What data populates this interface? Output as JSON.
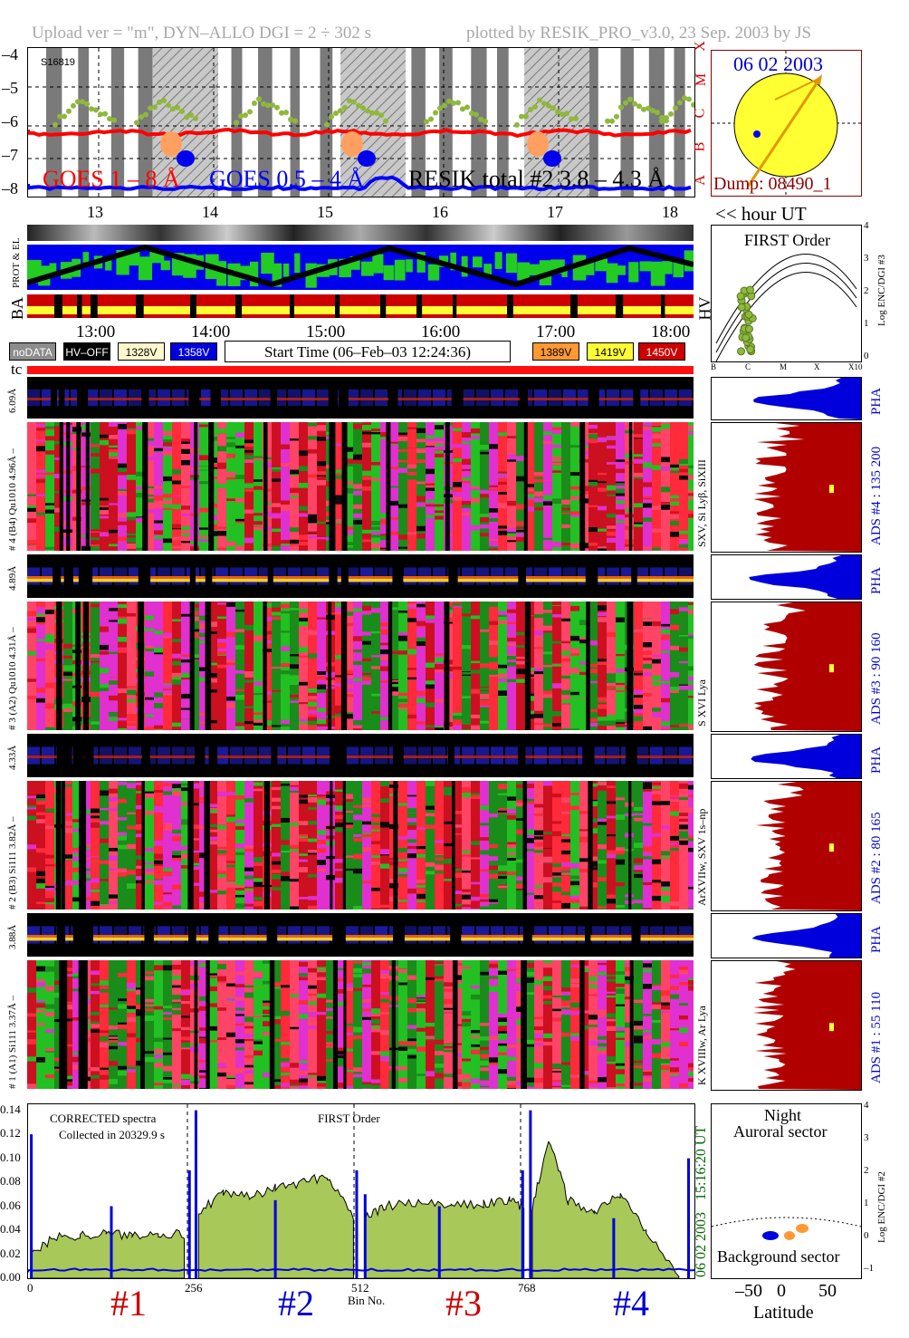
{
  "header": {
    "left_text": "Upload ver = \"m\", DYN–ALLO DGI = 2 ÷ 302 s",
    "right_text": "plotted by RESIK_PRO_v3.0, 23 Sep. 2003 by JS"
  },
  "goes_panel": {
    "y_ticks": [
      "–4",
      "–5",
      "–6",
      "–7",
      "–8"
    ],
    "class_letters": [
      "X",
      "M",
      "C",
      "B",
      "A"
    ],
    "badge": "S16819",
    "legend": {
      "goes1": "GOES 1 – 8 Å",
      "goes05": "GOES 0.5 – 4 Å",
      "resik": "RESIK total #2 3.8 – 4.3 Å"
    },
    "colors": {
      "goes1": "#ff0000",
      "goes05": "#0000ff",
      "resik": "#000000",
      "dots": "#8fb83c"
    }
  },
  "sun_panel": {
    "date": "06 02 2003",
    "dump": "Dump: 08490_1"
  },
  "orbit_axis": {
    "ticks": [
      "13",
      "14",
      "15",
      "16",
      "17",
      "18"
    ],
    "unit": "<< hour UT"
  },
  "orbit_panel": {
    "label_prot": "PROT & EL",
    "label_ba": "BA",
    "label_hv": "HV"
  },
  "first_order_panel": {
    "title": "FIRST Order",
    "right_label": "Log ENC/DGI #3",
    "y_ticks": [
      "4",
      "3",
      "2",
      "1",
      "0"
    ],
    "x_ticks": [
      "B",
      "C",
      "M",
      "X",
      "X10"
    ]
  },
  "time_axis": {
    "ticks": [
      "13:00",
      "14:00",
      "15:00",
      "16:00",
      "17:00",
      "18:00"
    ]
  },
  "legend_boxes": [
    {
      "label": "noDATA",
      "bg": "#8c8c8c",
      "fg": "#ffffff"
    },
    {
      "label": "HV–OFF",
      "bg": "#000000",
      "fg": "#ffffff"
    },
    {
      "label": "1328V",
      "bg": "#fff8cc",
      "fg": "#000000"
    },
    {
      "label": "1358V",
      "bg": "#0000dd",
      "fg": "#ffffff"
    },
    {
      "label": "1389V",
      "bg": "#ff9933",
      "fg": "#000000"
    },
    {
      "label": "1419V",
      "bg": "#ffff33",
      "fg": "#000000"
    },
    {
      "label": "1450V",
      "bg": "#cc0000",
      "fg": "#ffffff"
    }
  ],
  "start_time": "Start Time (06–Feb–03 12:24:36)",
  "tc_label": "tc",
  "channels": [
    {
      "pha_label": "6.09Å",
      "range_label": "# 4 (B4) Qu1010 4.96Å –",
      "lines": "SXV, Si Lyβ, SiXIII",
      "ads": "ADS #4 : 135 200",
      "pha": "PHA"
    },
    {
      "pha_label": "4.89Å",
      "range_label": "# 3 (A2) Qu1010 4.31Å –",
      "lines": "S XVI Lya",
      "ads": "ADS #3 : 90 160",
      "pha": "PHA"
    },
    {
      "pha_label": "4.33Å",
      "range_label": "# 2 (B3) Si111 3.82Å –",
      "lines": "ArXVIIw, SXV 1s–np",
      "ads": "ADS #2 : 80 165",
      "pha": "PHA"
    },
    {
      "pha_label": "3.88Å",
      "range_label": "# 1 (A1) Si111 3.37Å –",
      "lines": "K XVIIIw, Ar Lya",
      "ads": "ADS #1 : 55 110",
      "pha": "PHA"
    }
  ],
  "spectrum_panel": {
    "y_ticks": [
      "0.14",
      "0.12",
      "0.10",
      "0.08",
      "0.06",
      "0.04",
      "0.02",
      "0.00"
    ],
    "x_ticks": [
      "0",
      "256",
      "512",
      "768"
    ],
    "xlabel": "Bin No.",
    "note1": "CORRECTED spectra",
    "note2": "Collected in 20329.9 s",
    "note3": "FIRST Order",
    "time_vertical": "15:16:20 UT",
    "date_vertical": "06 02 2003",
    "section_labels": [
      "#1",
      "#2",
      "#3",
      "#4"
    ],
    "section_colors": [
      "#cc0000",
      "#0000cc",
      "#cc0000",
      "#0000cc"
    ]
  },
  "latitude_panel": {
    "title1": "Night",
    "title2": "Auroral sector",
    "bottom": "Background sector",
    "xlabel": "Latitude",
    "x_ticks": [
      "–50",
      "0",
      "50"
    ],
    "right_label": "Log ENC/DGI #2",
    "y_ticks": [
      "4",
      "3",
      "2",
      "1",
      "0",
      "–1"
    ]
  },
  "chart_data": {
    "type": "line",
    "title": "",
    "xlabel": "Bin No.",
    "ylabel": "",
    "xlim": [
      0,
      1024
    ],
    "ylim": [
      0,
      0.145
    ],
    "x_ticks": [
      0,
      256,
      512,
      768
    ],
    "series": [
      {
        "name": "CORRECTED spectra",
        "segments": [
          {
            "x": [
              5,
              40,
              80,
              120,
              160,
              200,
              240
            ],
            "y": [
              0.02,
              0.034,
              0.036,
              0.037,
              0.036,
              0.038,
              0.036
            ]
          },
          {
            "x": [
              262,
              300,
              340,
              380,
              420,
              460,
              500
            ],
            "y": [
              0.055,
              0.07,
              0.068,
              0.075,
              0.08,
              0.085,
              0.052
            ]
          },
          {
            "x": [
              518,
              550,
              600,
              650,
              700,
              740,
              762
            ],
            "y": [
              0.05,
              0.06,
              0.063,
              0.06,
              0.062,
              0.065,
              0.058
            ]
          },
          {
            "x": [
              775,
              800,
              830,
              870,
              910,
              950,
              1000
            ],
            "y": [
              0.06,
              0.115,
              0.065,
              0.055,
              0.07,
              0.04,
              0.005
            ]
          }
        ]
      }
    ],
    "goes_log_flux_range": [
      -8,
      -4
    ]
  }
}
